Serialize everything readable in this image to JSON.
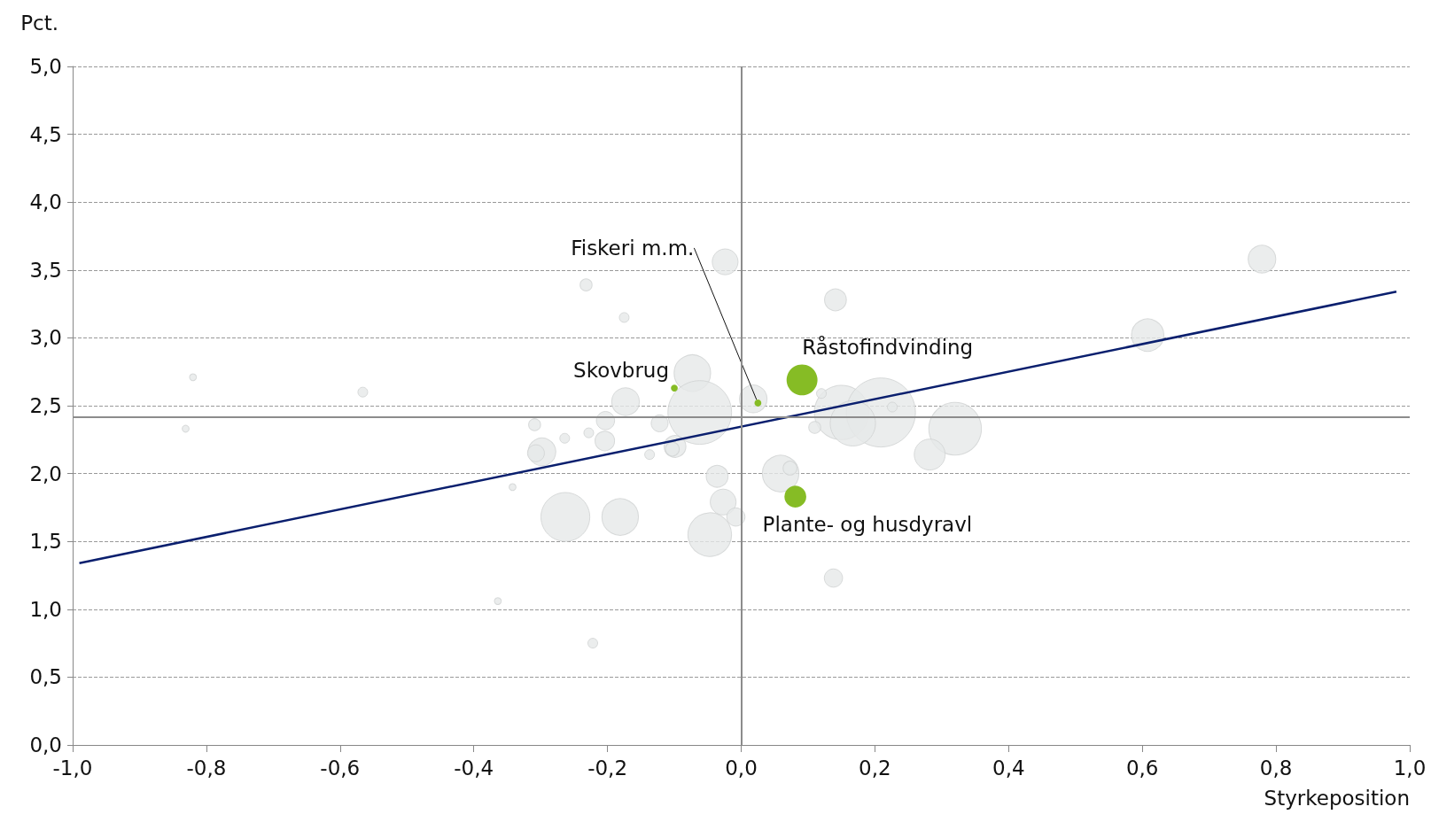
{
  "chart_data": {
    "type": "bubble",
    "xlabel": "Styrkeposition",
    "ylabel": "Pct.",
    "xlim": [
      -1.0,
      1.0
    ],
    "xticks": [
      {
        "value": -1.0,
        "label": "-1,0"
      },
      {
        "value": -0.8,
        "label": "-0,8"
      },
      {
        "value": -0.6,
        "label": "-0,6"
      },
      {
        "value": -0.4,
        "label": "-0,4"
      },
      {
        "value": -0.2,
        "label": "-0,2"
      },
      {
        "value": 0,
        "label": "0,0"
      },
      {
        "value": 0.2,
        "label": "0,2"
      },
      {
        "value": 0.4,
        "label": "0,4"
      },
      {
        "value": 0.6,
        "label": "0,6"
      },
      {
        "value": 0.8,
        "label": "0,8"
      },
      {
        "value": 1.0,
        "label": "1,0"
      }
    ],
    "ylim": [
      0,
      5.0
    ],
    "yticks": [
      {
        "value": 0,
        "label": "0,0"
      },
      {
        "value": 0.5,
        "label": "0,5"
      },
      {
        "value": 1.0,
        "label": "1,0"
      },
      {
        "value": 1.5,
        "label": "1,5"
      },
      {
        "value": 2.0,
        "label": "2,0"
      },
      {
        "value": 2.5,
        "label": "2,5"
      },
      {
        "value": 3.0,
        "label": "3,0"
      },
      {
        "value": 3.5,
        "label": "3,5"
      },
      {
        "value": 4.0,
        "label": "4,0"
      },
      {
        "value": 4.5,
        "label": "4,5"
      },
      {
        "value": 5.0,
        "label": "5,0"
      }
    ],
    "grid": "y",
    "legend": false,
    "ref_lines": [
      {
        "axis": "x",
        "value": 0,
        "color": "#8c8c8c"
      },
      {
        "axis": "y",
        "value": 2.42,
        "color": "#8c8c8c"
      }
    ],
    "series": [
      {
        "color": "#e6e8e8",
        "x": [
          -0.024,
          -0.232,
          -0.175,
          0.141,
          0.779,
          0.608,
          -0.073,
          -0.173,
          -0.062,
          0.018,
          0.15,
          0.209,
          0.167,
          0.32,
          0.282,
          0.11,
          0.12,
          0.226,
          -0.309,
          -0.228,
          -0.203,
          -0.204,
          -0.264,
          -0.298,
          -0.307,
          -0.122,
          -0.099,
          -0.103,
          -0.137,
          -0.342,
          -0.263,
          -0.181,
          -0.036,
          -0.027,
          -0.008,
          -0.047,
          0.059,
          0.073,
          0.138,
          -0.364,
          -0.222,
          -0.82,
          -0.566,
          -0.831
        ],
        "values": [
          3.56,
          3.39,
          3.15,
          3.28,
          3.58,
          3.02,
          2.74,
          2.53,
          2.45,
          2.55,
          2.45,
          2.45,
          2.37,
          2.33,
          2.14,
          2.34,
          2.59,
          2.49,
          2.36,
          2.3,
          2.39,
          2.24,
          2.26,
          2.16,
          2.15,
          2.37,
          2.2,
          2.18,
          2.14,
          1.9,
          1.68,
          1.68,
          1.98,
          1.79,
          1.68,
          1.55,
          2.0,
          2.04,
          1.23,
          1.06,
          0.75,
          2.71,
          2.6,
          2.33
        ],
        "sizes": [
          0.14,
          0.03,
          0.02,
          0.1,
          0.16,
          0.22,
          0.28,
          0.16,
          0.85,
          0.16,
          0.62,
          1,
          0.43,
          0.58,
          0.2,
          0.03,
          0.02,
          0.02,
          0.03,
          0.02,
          0.07,
          0.08,
          0.02,
          0.16,
          0.06,
          0.06,
          0.1,
          0.04,
          0.02,
          0.01,
          0.5,
          0.28,
          0.1,
          0.14,
          0.07,
          0.4,
          0.28,
          0.04,
          0.07,
          0.01,
          0.02,
          0.01,
          0.02,
          0.01
        ]
      },
      {
        "name": "Råstofindvinding",
        "color": "#86bc25",
        "x": [
          0.091
        ],
        "values": [
          2.69
        ],
        "sizes": [
          0.2
        ]
      },
      {
        "name": "Skovbrug",
        "color": "#86bc25",
        "x": [
          -0.1
        ],
        "values": [
          2.63
        ],
        "sizes": [
          0.01
        ]
      },
      {
        "name": "Fiskeri m.m.",
        "color": "#86bc25",
        "x": [
          0.025
        ],
        "values": [
          2.52
        ],
        "sizes": [
          0.01
        ]
      },
      {
        "name": "Plante- og husdyravl",
        "color": "#86bc25",
        "x": [
          0.081
        ],
        "values": [
          1.83
        ],
        "sizes": [
          0.1
        ]
      },
      {
        "type": "line",
        "color": "#0a1f6e",
        "x": [
          -0.99,
          0.98
        ],
        "values": [
          1.34,
          3.34
        ],
        "marker": "none",
        "line_style": "solid"
      }
    ]
  }
}
